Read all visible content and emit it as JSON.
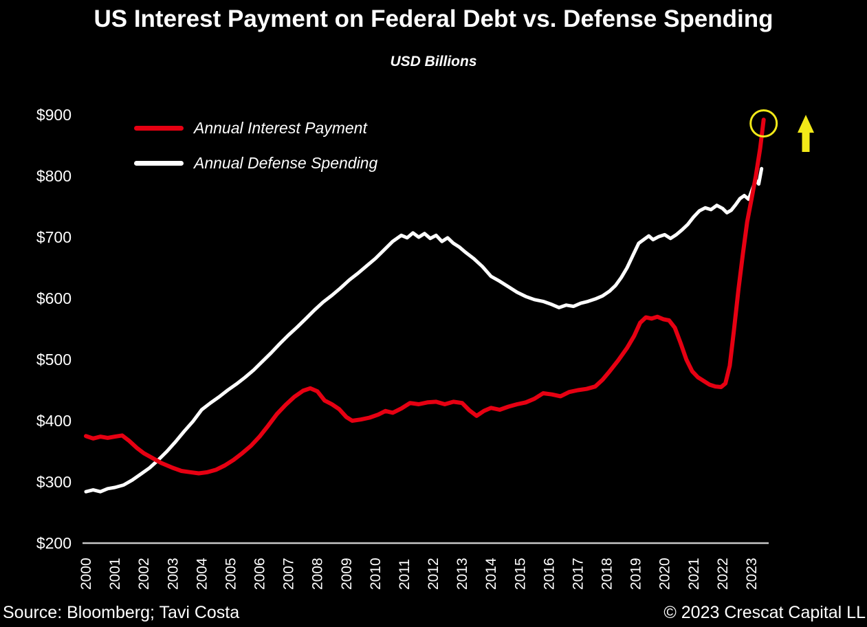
{
  "title": "US Interest Payment on Federal Debt vs. Defense Spending",
  "subtitle": "USD Billions",
  "legend": {
    "items": [
      {
        "label": "Annual Interest Payment",
        "color": "#e60012"
      },
      {
        "label": "Annual Defense Spending",
        "color": "#ffffff"
      }
    ]
  },
  "footer": {
    "source": "Source: Bloomberg; Tavi Costa",
    "copyright": "© 2023 Crescat Capital LL"
  },
  "annotations": {
    "circle": {
      "x_year": 2023.42,
      "y_value": 886,
      "radius": 19,
      "color": "#f2e918"
    },
    "arrow": {
      "direction": "up",
      "color": "#f2e918"
    }
  },
  "chart_data": {
    "type": "line",
    "title": "US Interest Payment on Federal Debt vs. Defense Spending",
    "subtitle": "USD Billions",
    "xlabel": "",
    "ylabel": "USD Billions",
    "grid": false,
    "legend_position": "upper-left",
    "background": "#000000",
    "axis_line_color": "#c8c8c8",
    "text_color": "#ffffff",
    "ylim": [
      200,
      900
    ],
    "y_ticks": [
      "$900",
      "$800",
      "$700",
      "$600",
      "$500",
      "$400",
      "$300",
      "$200"
    ],
    "x_ticks": [
      "2000",
      "2001",
      "2002",
      "2003",
      "2004",
      "2005",
      "2006",
      "2007",
      "2008",
      "2009",
      "2010",
      "2011",
      "2012",
      "2013",
      "2014",
      "2015",
      "2016",
      "2017",
      "2018",
      "2019",
      "2020",
      "2021",
      "2022",
      "2023"
    ],
    "series": [
      {
        "name": "Annual Defense Spending",
        "color": "#ffffff",
        "line_width": 5,
        "points": [
          [
            2000.0,
            284
          ],
          [
            2000.25,
            287
          ],
          [
            2000.5,
            284
          ],
          [
            2000.75,
            289
          ],
          [
            2001.0,
            291
          ],
          [
            2001.3,
            295
          ],
          [
            2001.6,
            303
          ],
          [
            2001.9,
            313
          ],
          [
            2002.2,
            323
          ],
          [
            2002.5,
            336
          ],
          [
            2002.8,
            350
          ],
          [
            2003.1,
            366
          ],
          [
            2003.4,
            383
          ],
          [
            2003.7,
            399
          ],
          [
            2004.0,
            418
          ],
          [
            2004.3,
            429
          ],
          [
            2004.6,
            439
          ],
          [
            2004.9,
            450
          ],
          [
            2005.2,
            460
          ],
          [
            2005.5,
            471
          ],
          [
            2005.8,
            483
          ],
          [
            2006.1,
            497
          ],
          [
            2006.4,
            511
          ],
          [
            2006.7,
            526
          ],
          [
            2007.0,
            540
          ],
          [
            2007.3,
            553
          ],
          [
            2007.6,
            567
          ],
          [
            2007.9,
            581
          ],
          [
            2008.2,
            594
          ],
          [
            2008.5,
            605
          ],
          [
            2008.8,
            617
          ],
          [
            2009.1,
            630
          ],
          [
            2009.4,
            641
          ],
          [
            2009.7,
            653
          ],
          [
            2010.0,
            665
          ],
          [
            2010.3,
            679
          ],
          [
            2010.6,
            693
          ],
          [
            2010.9,
            703
          ],
          [
            2011.1,
            699
          ],
          [
            2011.3,
            707
          ],
          [
            2011.5,
            700
          ],
          [
            2011.7,
            706
          ],
          [
            2011.9,
            698
          ],
          [
            2012.1,
            703
          ],
          [
            2012.3,
            693
          ],
          [
            2012.5,
            699
          ],
          [
            2012.7,
            690
          ],
          [
            2012.9,
            684
          ],
          [
            2013.1,
            676
          ],
          [
            2013.4,
            665
          ],
          [
            2013.7,
            652
          ],
          [
            2014.0,
            636
          ],
          [
            2014.3,
            628
          ],
          [
            2014.6,
            619
          ],
          [
            2014.9,
            610
          ],
          [
            2015.2,
            603
          ],
          [
            2015.5,
            598
          ],
          [
            2015.8,
            595
          ],
          [
            2016.1,
            590
          ],
          [
            2016.35,
            585
          ],
          [
            2016.6,
            589
          ],
          [
            2016.85,
            587
          ],
          [
            2017.1,
            592
          ],
          [
            2017.35,
            595
          ],
          [
            2017.6,
            599
          ],
          [
            2017.85,
            604
          ],
          [
            2018.1,
            612
          ],
          [
            2018.3,
            621
          ],
          [
            2018.5,
            634
          ],
          [
            2018.7,
            650
          ],
          [
            2018.9,
            670
          ],
          [
            2019.1,
            690
          ],
          [
            2019.3,
            697
          ],
          [
            2019.45,
            702
          ],
          [
            2019.6,
            696
          ],
          [
            2019.8,
            701
          ],
          [
            2020.0,
            704
          ],
          [
            2020.2,
            698
          ],
          [
            2020.4,
            704
          ],
          [
            2020.6,
            712
          ],
          [
            2020.8,
            721
          ],
          [
            2021.0,
            733
          ],
          [
            2021.2,
            743
          ],
          [
            2021.4,
            748
          ],
          [
            2021.6,
            745
          ],
          [
            2021.8,
            752
          ],
          [
            2022.0,
            747
          ],
          [
            2022.15,
            740
          ],
          [
            2022.3,
            744
          ],
          [
            2022.45,
            753
          ],
          [
            2022.6,
            763
          ],
          [
            2022.75,
            768
          ],
          [
            2022.9,
            762
          ],
          [
            2023.05,
            781
          ],
          [
            2023.15,
            793
          ],
          [
            2023.25,
            787
          ],
          [
            2023.35,
            812
          ]
        ]
      },
      {
        "name": "Annual Interest Payment",
        "color": "#e60012",
        "line_width": 6,
        "points": [
          [
            2000.0,
            375
          ],
          [
            2000.25,
            371
          ],
          [
            2000.5,
            374
          ],
          [
            2000.75,
            372
          ],
          [
            2001.0,
            374
          ],
          [
            2001.25,
            376
          ],
          [
            2001.5,
            367
          ],
          [
            2001.75,
            356
          ],
          [
            2002.0,
            347
          ],
          [
            2002.3,
            339
          ],
          [
            2002.6,
            331
          ],
          [
            2003.0,
            323
          ],
          [
            2003.3,
            318
          ],
          [
            2003.6,
            316
          ],
          [
            2003.9,
            314
          ],
          [
            2004.2,
            316
          ],
          [
            2004.5,
            320
          ],
          [
            2004.8,
            327
          ],
          [
            2005.1,
            336
          ],
          [
            2005.4,
            347
          ],
          [
            2005.7,
            359
          ],
          [
            2006.0,
            374
          ],
          [
            2006.3,
            392
          ],
          [
            2006.6,
            411
          ],
          [
            2006.9,
            426
          ],
          [
            2007.2,
            439
          ],
          [
            2007.5,
            449
          ],
          [
            2007.75,
            453
          ],
          [
            2008.0,
            448
          ],
          [
            2008.25,
            433
          ],
          [
            2008.5,
            427
          ],
          [
            2008.75,
            419
          ],
          [
            2009.0,
            406
          ],
          [
            2009.2,
            400
          ],
          [
            2009.5,
            402
          ],
          [
            2009.8,
            405
          ],
          [
            2010.1,
            410
          ],
          [
            2010.35,
            416
          ],
          [
            2010.6,
            413
          ],
          [
            2010.9,
            420
          ],
          [
            2011.2,
            429
          ],
          [
            2011.5,
            427
          ],
          [
            2011.8,
            430
          ],
          [
            2012.1,
            431
          ],
          [
            2012.4,
            427
          ],
          [
            2012.7,
            431
          ],
          [
            2013.0,
            429
          ],
          [
            2013.25,
            417
          ],
          [
            2013.5,
            408
          ],
          [
            2013.75,
            416
          ],
          [
            2014.0,
            421
          ],
          [
            2014.3,
            418
          ],
          [
            2014.6,
            423
          ],
          [
            2014.9,
            427
          ],
          [
            2015.2,
            430
          ],
          [
            2015.5,
            436
          ],
          [
            2015.8,
            445
          ],
          [
            2016.1,
            443
          ],
          [
            2016.4,
            440
          ],
          [
            2016.7,
            447
          ],
          [
            2017.0,
            450
          ],
          [
            2017.3,
            452
          ],
          [
            2017.6,
            456
          ],
          [
            2017.85,
            467
          ],
          [
            2018.1,
            481
          ],
          [
            2018.4,
            499
          ],
          [
            2018.7,
            519
          ],
          [
            2018.95,
            539
          ],
          [
            2019.15,
            560
          ],
          [
            2019.35,
            569
          ],
          [
            2019.55,
            567
          ],
          [
            2019.75,
            570
          ],
          [
            2019.95,
            566
          ],
          [
            2020.15,
            564
          ],
          [
            2020.35,
            552
          ],
          [
            2020.55,
            527
          ],
          [
            2020.75,
            500
          ],
          [
            2020.95,
            481
          ],
          [
            2021.15,
            471
          ],
          [
            2021.35,
            465
          ],
          [
            2021.55,
            459
          ],
          [
            2021.75,
            456
          ],
          [
            2021.95,
            455
          ],
          [
            2022.1,
            461
          ],
          [
            2022.25,
            490
          ],
          [
            2022.4,
            550
          ],
          [
            2022.55,
            615
          ],
          [
            2022.7,
            672
          ],
          [
            2022.85,
            725
          ],
          [
            2023.0,
            762
          ],
          [
            2023.15,
            800
          ],
          [
            2023.3,
            845
          ],
          [
            2023.42,
            892
          ]
        ]
      }
    ]
  }
}
